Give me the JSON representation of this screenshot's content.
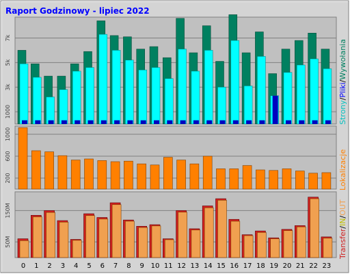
{
  "title": "Raport Godzinowy -  lipiec 2022",
  "colors": {
    "background": "#ffffff",
    "frame_bg": "#d4d4d4",
    "plot_bg": "#c0c0c0",
    "grid": "#808080",
    "title": "#0000ff",
    "strony": "#008060",
    "pliki": "#00ffff",
    "wywolania": "#0000c0",
    "lokalizacje": "#ff8000",
    "transfer_in": "#d02020",
    "transfer_out": "#f0a050"
  },
  "legend": {
    "top": [
      {
        "text": "Strony",
        "color": "#00c0c0"
      },
      {
        "text": "/",
        "color": "#000000"
      },
      {
        "text": "Pliki",
        "color": "#0000ff"
      },
      {
        "text": "/",
        "color": "#000000"
      },
      {
        "text": "Wywołania",
        "color": "#008060"
      }
    ],
    "middle": [
      {
        "text": "Lokalizacje",
        "color": "#ff8000"
      }
    ],
    "bottom": [
      {
        "text": "Transfer",
        "color": "#d02020"
      },
      {
        "text": "/",
        "color": "#000000"
      },
      {
        "text": "IN",
        "color": "#c0c000"
      },
      {
        "text": "/",
        "color": "#000000"
      },
      {
        "text": "OUT",
        "color": "#f0a050"
      }
    ]
  },
  "chart_data": [
    {
      "type": "bar",
      "categories": [
        "0",
        "1",
        "2",
        "3",
        "4",
        "5",
        "6",
        "7",
        "8",
        "9",
        "10",
        "11",
        "12",
        "13",
        "14",
        "15",
        "16",
        "17",
        "18",
        "19",
        "20",
        "21",
        "22",
        "23"
      ],
      "y_ticks": [
        "1000",
        "3k",
        "5k",
        "7k"
      ],
      "ylim": [
        0,
        8700
      ],
      "series": [
        {
          "name": "Wywołania",
          "values": [
            6000,
            4900,
            3900,
            3900,
            4900,
            5900,
            8400,
            7200,
            7100,
            6100,
            6300,
            5400,
            8600,
            5800,
            8000,
            5100,
            8900,
            5800,
            7500,
            4100,
            6100,
            6800,
            7400,
            6100
          ]
        },
        {
          "name": "Pliki",
          "values": [
            4900,
            3800,
            2200,
            2800,
            4300,
            4600,
            7300,
            6000,
            5200,
            4400,
            4600,
            3700,
            6100,
            4300,
            6000,
            3000,
            6800,
            3100,
            5500,
            2300,
            4200,
            4800,
            5300,
            4500
          ]
        },
        {
          "name": "Strony",
          "values": [
            300,
            300,
            300,
            300,
            300,
            300,
            300,
            300,
            300,
            300,
            300,
            300,
            300,
            300,
            300,
            300,
            300,
            300,
            300,
            2300,
            300,
            300,
            300,
            300
          ]
        }
      ]
    },
    {
      "type": "bar",
      "categories": [
        "0",
        "1",
        "2",
        "3",
        "4",
        "5",
        "6",
        "7",
        "8",
        "9",
        "10",
        "11",
        "12",
        "13",
        "14",
        "15",
        "16",
        "17",
        "18",
        "19",
        "20",
        "21",
        "22",
        "23"
      ],
      "y_ticks": [
        "200",
        "600",
        "1000"
      ],
      "ylim": [
        0,
        1150
      ],
      "series": [
        {
          "name": "Lokalizacje",
          "values": [
            1120,
            700,
            680,
            610,
            530,
            550,
            520,
            500,
            510,
            460,
            440,
            580,
            530,
            460,
            600,
            370,
            370,
            430,
            350,
            340,
            370,
            330,
            290,
            300
          ]
        }
      ]
    },
    {
      "type": "bar",
      "categories": [
        "0",
        "1",
        "2",
        "3",
        "4",
        "5",
        "6",
        "7",
        "8",
        "9",
        "10",
        "11",
        "12",
        "13",
        "14",
        "15",
        "16",
        "17",
        "18",
        "19",
        "20",
        "21",
        "22",
        "23"
      ],
      "y_ticks": [
        "50M",
        "150M"
      ],
      "ylim": [
        0,
        210
      ],
      "series": [
        {
          "name": "IN",
          "values": [
            60,
            135,
            150,
            118,
            58,
            140,
            128,
            175,
            120,
            100,
            105,
            60,
            150,
            92,
            165,
            188,
            122,
            73,
            85,
            63,
            90,
            102,
            193,
            66
          ]
        },
        {
          "name": "OUT",
          "values": [
            54,
            130,
            144,
            113,
            55,
            134,
            123,
            169,
            116,
            96,
            101,
            57,
            145,
            88,
            159,
            183,
            116,
            70,
            80,
            60,
            86,
            98,
            188,
            62
          ]
        }
      ]
    }
  ]
}
